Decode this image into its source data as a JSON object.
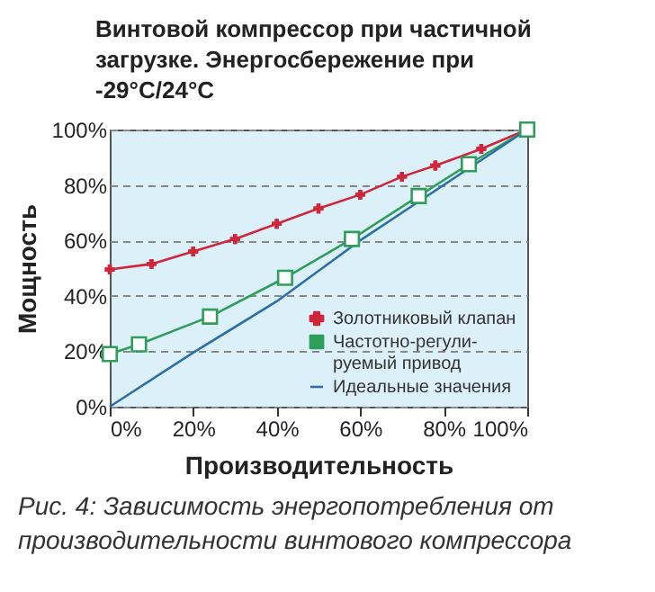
{
  "chart_data": {
    "type": "line",
    "title": "Винтовой компрессор при частичной\nзагрузке. Энергосбережение при\n-29°C/24°C",
    "xlabel": "Производительность",
    "ylabel": "Мощность",
    "annotations": [
      "Рис. 4: Зависимость энергопотребления от\nпроизводительности винтового компрессора"
    ],
    "series": [
      {
        "name": "Золотниковый клапан",
        "color": "#d0263a",
        "marker": "cross",
        "x": [
          0,
          10,
          20,
          30,
          40,
          50,
          60,
          70,
          78,
          89,
          100
        ],
        "values": [
          49.5,
          51.5,
          56,
          60.5,
          66,
          71.5,
          76.5,
          83,
          87,
          93,
          100
        ]
      },
      {
        "name": "Частотно-регули-руемый привод",
        "color": "#2f9e5a",
        "marker": "square",
        "x": [
          0,
          7,
          24,
          42,
          58,
          74,
          86,
          100
        ],
        "values": [
          19,
          22.5,
          32.5,
          46.5,
          60.5,
          76,
          87.5,
          100
        ]
      },
      {
        "name": "Идеальные значения",
        "color": "#2a6fa8",
        "marker": "none",
        "x": [
          0,
          20,
          40,
          60,
          75,
          100
        ],
        "values": [
          0,
          19.5,
          38,
          60,
          75,
          100
        ]
      }
    ],
    "xlim": [
      0,
      100
    ],
    "ylim": [
      0,
      100
    ],
    "xticks": [
      {
        "value": 0,
        "label": "0%"
      },
      {
        "value": 20,
        "label": "20%"
      },
      {
        "value": 40,
        "label": "40%"
      },
      {
        "value": 60,
        "label": "60%"
      },
      {
        "value": 80,
        "label": "80%"
      },
      {
        "value": 100,
        "label": "100%"
      }
    ],
    "yticks": [
      {
        "value": 0,
        "label": "0%"
      },
      {
        "value": 20,
        "label": "20%"
      },
      {
        "value": 40,
        "label": "40%"
      },
      {
        "value": 60,
        "label": "60%"
      },
      {
        "value": 80,
        "label": "80%"
      },
      {
        "value": 100,
        "label": "100%"
      }
    ],
    "grid": "y",
    "legend": "bottom right"
  }
}
